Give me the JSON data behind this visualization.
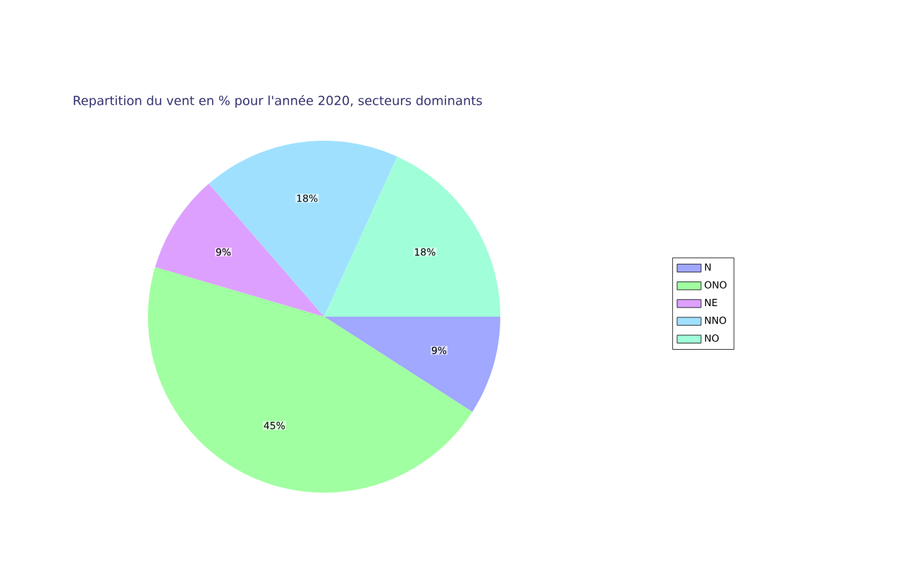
{
  "chart_data": {
    "type": "pie",
    "title": "Repartition du vent en % pour l'année 2020, secteurs dominants",
    "categories": [
      "N",
      "ONO",
      "NE",
      "NNO",
      "NO"
    ],
    "values": [
      9,
      45,
      9,
      18,
      18
    ],
    "value_labels": [
      "9%",
      "45%",
      "9%",
      "18%",
      "18%"
    ],
    "colors": [
      "#a0a8ff",
      "#a0ffa0",
      "#dda0ff",
      "#a0e0ff",
      "#a0ffd8"
    ],
    "legend": "right"
  }
}
